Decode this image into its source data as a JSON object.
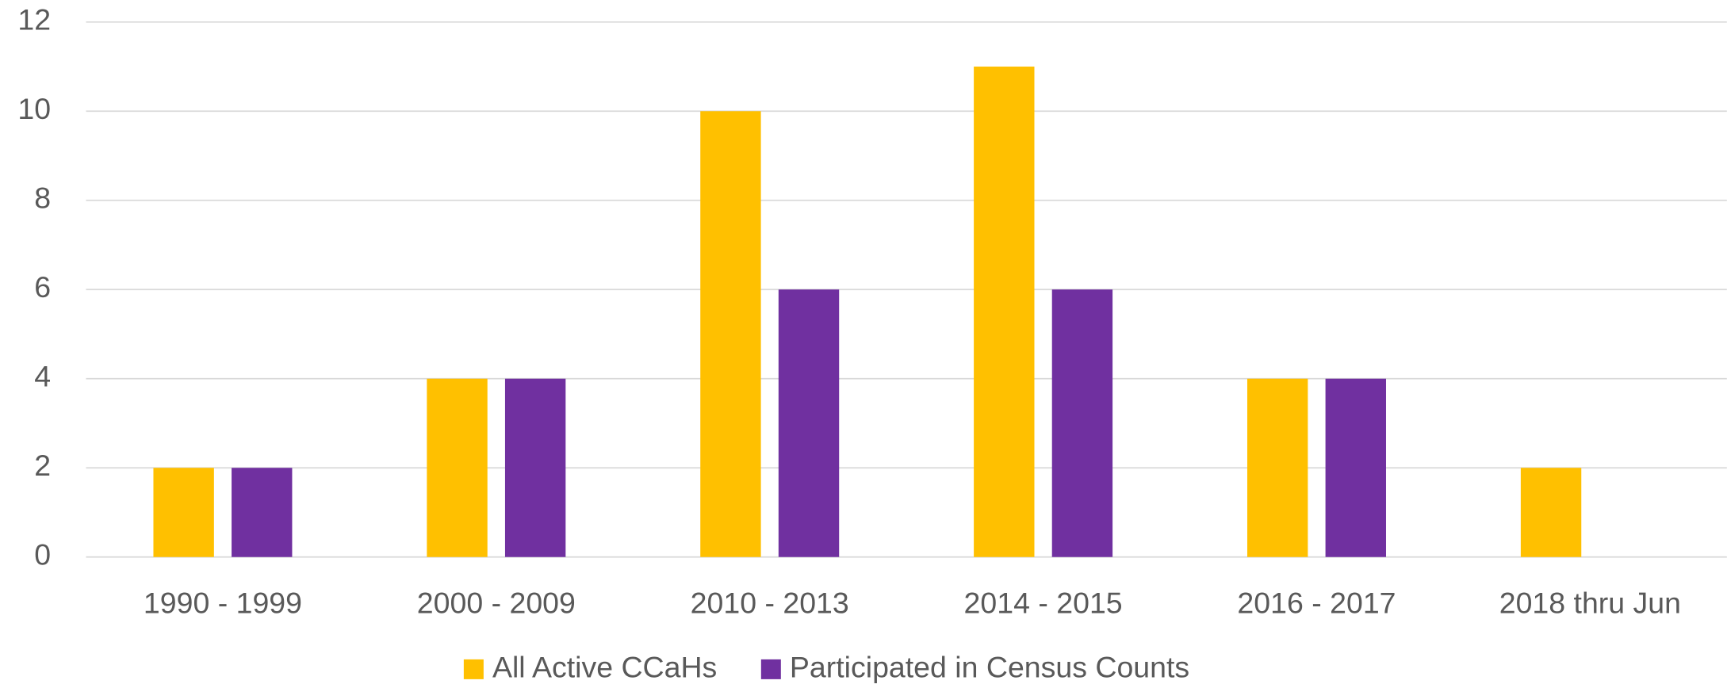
{
  "chart_data": {
    "type": "bar",
    "categories": [
      "1990 - 1999",
      "2000 - 2009",
      "2010 - 2013",
      "2014 - 2015",
      "2016 - 2017",
      "2018 thru Jun"
    ],
    "series": [
      {
        "name": "All Active CCaHs",
        "color": "#ffc000",
        "values": [
          2,
          4,
          10,
          11,
          4,
          2
        ]
      },
      {
        "name": "Participated in Census Counts",
        "color": "#7030a0",
        "values": [
          2,
          4,
          6,
          6,
          4,
          0
        ]
      }
    ],
    "ylim": [
      0,
      12
    ],
    "yticks": [
      0,
      2,
      4,
      6,
      8,
      10,
      12
    ],
    "grid": true,
    "legend": "bottom"
  }
}
